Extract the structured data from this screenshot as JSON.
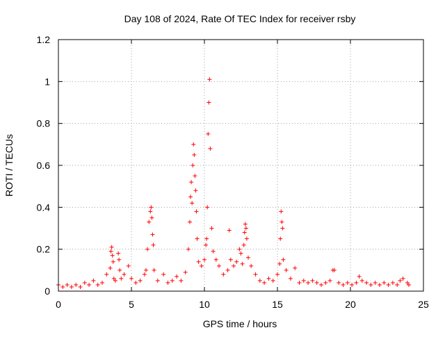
{
  "chart_data": {
    "type": "scatter",
    "title": "Day 108 of 2024, Rate Of TEC Index for receiver rsby",
    "xlabel": "GPS time / hours",
    "ylabel": "ROTI / TECUs",
    "xlim": [
      0,
      25
    ],
    "ylim": [
      0,
      1.2
    ],
    "xticks": [
      0,
      5,
      10,
      15,
      20,
      25
    ],
    "xtick_labels": [
      "0",
      "5",
      "10",
      "15",
      "20",
      "25"
    ],
    "yticks": [
      0,
      0.2,
      0.4,
      0.6,
      0.8,
      1.0,
      1.2
    ],
    "ytick_labels": [
      "0",
      "0.2",
      "0.4",
      "0.6",
      "0.8",
      "1",
      "1.2"
    ],
    "grid": true,
    "marker": "plus",
    "marker_color": "#ff0000",
    "series": [
      {
        "x": [
          0.0,
          0.3,
          0.6,
          0.9,
          1.2,
          1.5,
          1.8,
          2.1,
          2.4,
          2.7,
          3.0,
          3.3,
          3.55,
          3.6,
          3.65,
          3.7,
          3.75,
          3.8,
          3.9,
          4.1,
          4.15,
          4.2,
          4.3,
          4.5,
          4.8,
          5.0,
          5.3,
          5.6,
          5.9,
          6.0,
          6.1,
          6.2,
          6.3,
          6.35,
          6.4,
          6.45,
          6.5,
          6.55,
          6.8,
          7.2,
          7.5,
          7.8,
          8.1,
          8.4,
          8.7,
          8.9,
          9.0,
          9.05,
          9.1,
          9.15,
          9.2,
          9.25,
          9.3,
          9.35,
          9.4,
          9.45,
          9.5,
          9.6,
          9.8,
          10.0,
          10.1,
          10.15,
          10.2,
          10.25,
          10.3,
          10.35,
          10.4,
          10.5,
          10.6,
          10.8,
          11.0,
          11.3,
          11.6,
          11.7,
          11.8,
          12.0,
          12.2,
          12.4,
          12.5,
          12.6,
          12.7,
          12.75,
          12.8,
          12.85,
          12.9,
          13.0,
          13.2,
          13.5,
          13.8,
          14.1,
          14.4,
          14.7,
          15.0,
          15.15,
          15.2,
          15.25,
          15.3,
          15.35,
          15.4,
          15.6,
          15.9,
          16.2,
          16.5,
          16.8,
          17.1,
          17.4,
          17.7,
          18.0,
          18.3,
          18.6,
          18.8,
          18.9,
          19.2,
          19.5,
          19.8,
          20.1,
          20.4,
          20.6,
          20.8,
          21.1,
          21.4,
          21.7,
          22.0,
          22.3,
          22.6,
          22.9,
          23.2,
          23.4,
          23.6,
          23.9,
          24.0
        ],
        "y": [
          0.03,
          0.02,
          0.03,
          0.02,
          0.03,
          0.02,
          0.04,
          0.03,
          0.05,
          0.03,
          0.04,
          0.08,
          0.11,
          0.19,
          0.21,
          0.17,
          0.14,
          0.06,
          0.05,
          0.18,
          0.15,
          0.1,
          0.06,
          0.08,
          0.12,
          0.06,
          0.04,
          0.05,
          0.08,
          0.1,
          0.2,
          0.33,
          0.38,
          0.4,
          0.35,
          0.27,
          0.22,
          0.1,
          0.05,
          0.08,
          0.04,
          0.05,
          0.07,
          0.05,
          0.09,
          0.2,
          0.33,
          0.45,
          0.52,
          0.42,
          0.6,
          0.7,
          0.65,
          0.55,
          0.48,
          0.38,
          0.25,
          0.14,
          0.12,
          0.15,
          0.22,
          0.25,
          0.4,
          0.75,
          0.9,
          1.01,
          0.68,
          0.3,
          0.19,
          0.15,
          0.12,
          0.08,
          0.1,
          0.29,
          0.15,
          0.12,
          0.14,
          0.2,
          0.18,
          0.13,
          0.22,
          0.28,
          0.32,
          0.3,
          0.25,
          0.16,
          0.12,
          0.08,
          0.05,
          0.04,
          0.06,
          0.05,
          0.08,
          0.13,
          0.25,
          0.38,
          0.33,
          0.3,
          0.15,
          0.1,
          0.06,
          0.11,
          0.04,
          0.05,
          0.04,
          0.05,
          0.04,
          0.03,
          0.04,
          0.05,
          0.1,
          0.1,
          0.04,
          0.03,
          0.04,
          0.03,
          0.04,
          0.07,
          0.05,
          0.04,
          0.03,
          0.04,
          0.03,
          0.04,
          0.03,
          0.04,
          0.03,
          0.05,
          0.06,
          0.04,
          0.03
        ]
      }
    ]
  }
}
